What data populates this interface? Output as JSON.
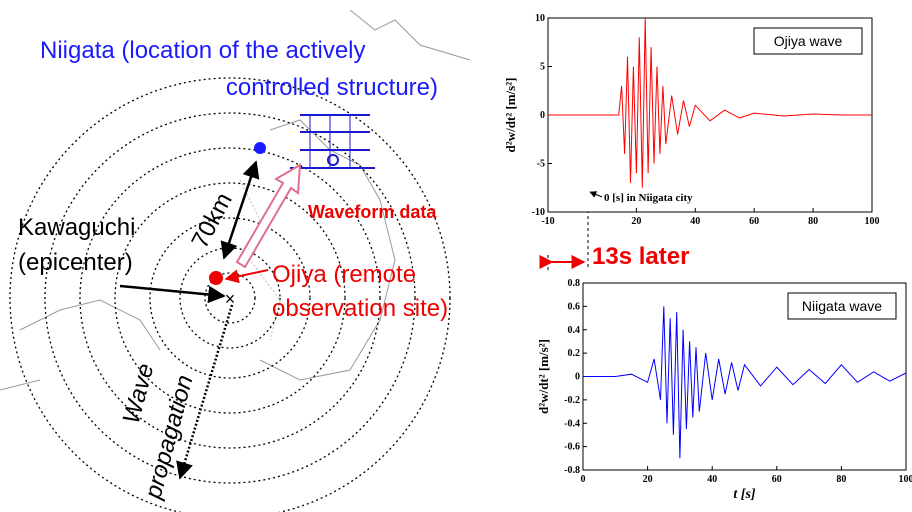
{
  "map": {
    "title_line1": "Niigata (location of the actively",
    "title_line2": "controlled structure)",
    "epicenter_line1": "Kawaguchi",
    "epicenter_line2": "(epicenter)",
    "distance": "70km",
    "site_line1": "Ojiya (remote",
    "site_line2": "observation site)",
    "waveform": "Waveform data",
    "propagation_line1": "Wave",
    "propagation_line2": "propagation",
    "delay": "13s later"
  },
  "chart_data": [
    {
      "type": "line",
      "annotation": "Ojiya wave",
      "note": "0 [s] in Niigata city",
      "y_label": "d²w/dt² [m/s²]",
      "color": "#ff0000",
      "x": [
        -10,
        14,
        15,
        16,
        17,
        18,
        19,
        20,
        21,
        22,
        23,
        24,
        25,
        26,
        27,
        28,
        29,
        30,
        32,
        34,
        36,
        38,
        40,
        45,
        50,
        55,
        60,
        70,
        80,
        90,
        100
      ],
      "values": [
        0,
        0,
        3,
        -4,
        6,
        -7,
        5,
        -6,
        8,
        -7.5,
        10,
        -6,
        7,
        -5,
        5,
        -4,
        3,
        -3,
        2,
        -2,
        1.5,
        -1.2,
        1,
        -0.6,
        0.5,
        -0.3,
        0.2,
        -0.1,
        0.1,
        0,
        0
      ],
      "xlim": [
        -10,
        100
      ],
      "ylim": [
        -10,
        10
      ],
      "xticks": [
        -10,
        20,
        40,
        60,
        80,
        100
      ],
      "yticks": [
        -10,
        -5,
        0,
        5,
        10
      ]
    },
    {
      "type": "line",
      "annotation": "Niigata wave",
      "y_label": "d²w/dt² [m/s²]",
      "x_label": "t [s]",
      "color": "#0000ff",
      "x": [
        0,
        10,
        15,
        20,
        22,
        24,
        25,
        26,
        27,
        28,
        29,
        30,
        31,
        32,
        33,
        34,
        35,
        36,
        38,
        40,
        42,
        44,
        46,
        48,
        50,
        55,
        60,
        65,
        70,
        75,
        80,
        85,
        90,
        95,
        100
      ],
      "values": [
        0,
        0,
        0.02,
        -0.05,
        0.15,
        -0.2,
        0.6,
        -0.4,
        0.5,
        -0.5,
        0.55,
        -0.7,
        0.4,
        -0.45,
        0.3,
        -0.35,
        0.25,
        -0.3,
        0.2,
        -0.2,
        0.15,
        -0.15,
        0.12,
        -0.12,
        0.1,
        -0.08,
        0.08,
        -0.07,
        0.06,
        -0.06,
        0.1,
        -0.05,
        0.04,
        -0.04,
        0.03
      ],
      "xlim": [
        0,
        100
      ],
      "ylim": [
        -0.8,
        0.8
      ],
      "xticks": [
        0,
        20,
        40,
        60,
        80,
        100
      ],
      "yticks": [
        -0.8,
        -0.6,
        -0.4,
        -0.2,
        0,
        0.2,
        0.4,
        0.6,
        0.8
      ]
    }
  ]
}
